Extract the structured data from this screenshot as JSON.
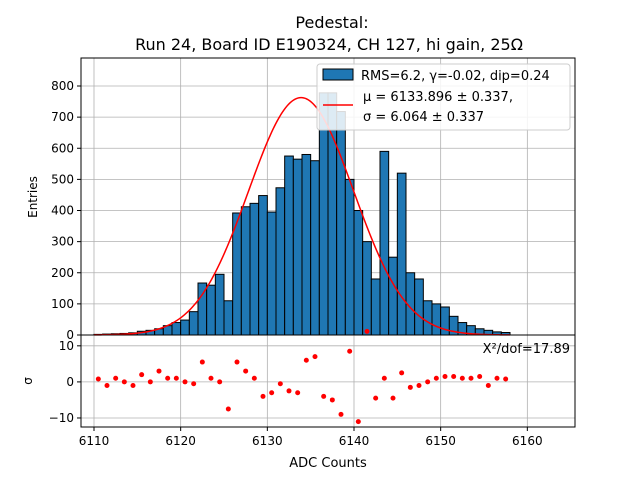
{
  "chart_data": [
    {
      "type": "bar",
      "title": "Pedestal:",
      "subtitle": "Run 24, Board ID E190324, CH 127, hi gain, 25Ω",
      "xlabel": "",
      "ylabel": "Entries",
      "xlim": [
        6108.5,
        6165.5
      ],
      "ylim": [
        0,
        890
      ],
      "yticks": [
        0,
        100,
        200,
        300,
        400,
        500,
        600,
        700,
        800
      ],
      "grid": true,
      "legend_position": "top-right",
      "bin_width": 1,
      "bin_start": 6110,
      "counts": [
        2,
        3,
        4,
        5,
        7,
        12,
        15,
        20,
        30,
        40,
        48,
        75,
        167,
        160,
        195,
        110,
        392,
        412,
        423,
        448,
        395,
        473,
        575,
        565,
        580,
        560,
        778,
        778,
        718,
        500,
        400,
        300,
        180,
        590,
        250,
        520,
        200,
        180,
        110,
        100,
        90,
        60,
        40,
        30,
        20,
        15,
        10,
        8
      ],
      "bar_color": "#1f77b4",
      "series": [
        {
          "name": "RMS=6.2, γ=-0.02, dip=0.24",
          "kind": "histogram",
          "color": "#1f77b4"
        },
        {
          "name_line1": "μ = 6133.896 ± 0.337,",
          "name_line2": "σ = 6.064 ± 0.337",
          "kind": "gaussian fit",
          "mu": 6133.896,
          "sigma": 6.064,
          "color": "#ff0000"
        }
      ]
    },
    {
      "type": "scatter",
      "xlabel": "ADC Counts",
      "ylabel": "σ",
      "xlim": [
        6108.5,
        6165.5
      ],
      "ylim": [
        -12.5,
        13
      ],
      "xticks": [
        6110,
        6120,
        6130,
        6140,
        6150,
        6160
      ],
      "yticks": [
        -10,
        0,
        10
      ],
      "grid": true,
      "annotation": "X²/dof=17.89",
      "point_color": "#ff0000",
      "x": [
        6110.5,
        6111.5,
        6112.5,
        6113.5,
        6114.5,
        6115.5,
        6116.5,
        6117.5,
        6118.5,
        6119.5,
        6120.5,
        6121.5,
        6122.5,
        6123.5,
        6124.5,
        6125.5,
        6126.5,
        6127.5,
        6128.5,
        6129.5,
        6130.5,
        6131.5,
        6132.5,
        6133.5,
        6134.5,
        6135.5,
        6136.5,
        6137.5,
        6138.5,
        6139.5,
        6140.5,
        6141.5,
        6142.5,
        6143.5,
        6144.5,
        6145.5,
        6146.5,
        6147.5,
        6148.5,
        6149.5,
        6150.5,
        6151.5,
        6152.5,
        6153.5,
        6154.5,
        6155.5,
        6156.5,
        6157.5
      ],
      "y": [
        0.8,
        -1,
        1,
        0,
        -1,
        2,
        0,
        3,
        1,
        1,
        0,
        -0.5,
        5.5,
        1,
        0,
        -7.5,
        5.5,
        3,
        1,
        -4,
        -3,
        -0.5,
        -2.5,
        -3,
        6,
        7,
        -4,
        -5,
        -9,
        8.5,
        -11,
        14,
        -4.5,
        1,
        -4.5,
        2.5,
        -1.5,
        -1,
        0,
        1,
        1.5,
        1.5,
        1,
        1,
        1.5,
        -1,
        1,
        0.8
      ]
    }
  ]
}
